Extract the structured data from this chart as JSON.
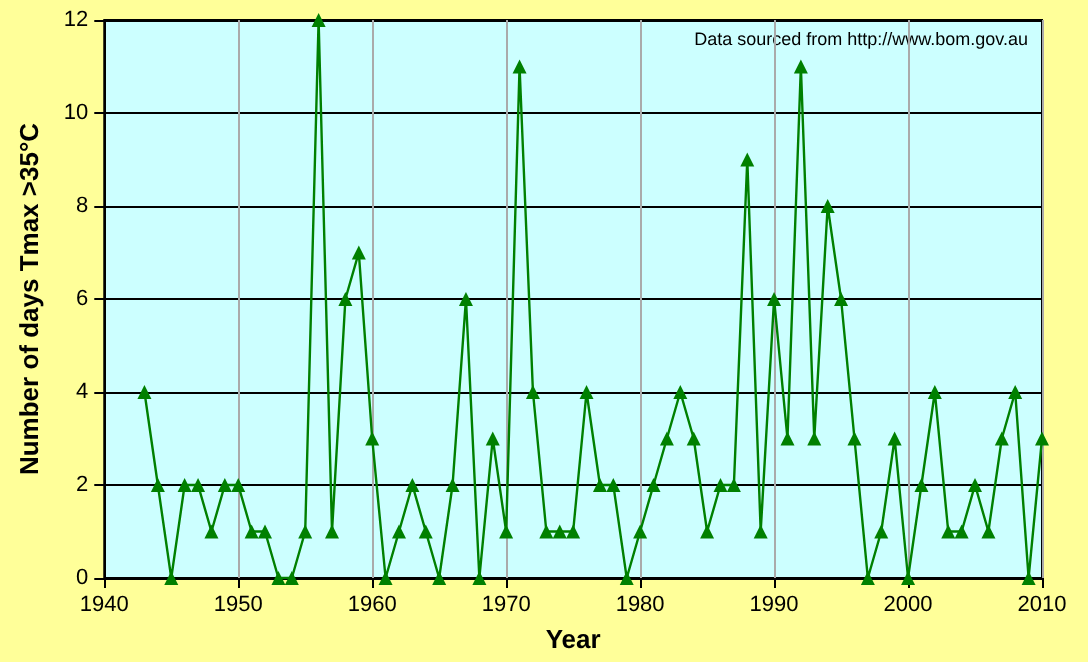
{
  "chart_data": {
    "type": "line",
    "xlabel": "Year",
    "ylabel": "Number of days Tmax >35°C",
    "annotations": [
      "Data sourced from http://www.bom.gov.au"
    ],
    "x": [
      1943,
      1944,
      1945,
      1946,
      1947,
      1948,
      1949,
      1950,
      1951,
      1952,
      1953,
      1954,
      1955,
      1956,
      1957,
      1958,
      1959,
      1960,
      1961,
      1962,
      1963,
      1964,
      1965,
      1966,
      1967,
      1968,
      1969,
      1970,
      1971,
      1972,
      1973,
      1974,
      1975,
      1976,
      1977,
      1978,
      1979,
      1980,
      1981,
      1982,
      1983,
      1984,
      1985,
      1986,
      1987,
      1988,
      1989,
      1990,
      1991,
      1992,
      1993,
      1994,
      1995,
      1996,
      1997,
      1998,
      1999,
      2000,
      2001,
      2002,
      2003,
      2004,
      2005,
      2006,
      2007,
      2008,
      2009,
      2010
    ],
    "series": [
      {
        "color": "#008000",
        "values": [
          4,
          2,
          0,
          2,
          2,
          1,
          2,
          2,
          1,
          1,
          0,
          0,
          1,
          12,
          1,
          6,
          7,
          3,
          0,
          1,
          2,
          1,
          0,
          2,
          6,
          0,
          3,
          1,
          11,
          4,
          1,
          1,
          1,
          4,
          2,
          2,
          0,
          1,
          2,
          3,
          4,
          3,
          1,
          2,
          2,
          9,
          1,
          6,
          3,
          11,
          3,
          8,
          6,
          3,
          0,
          1,
          3,
          0,
          2,
          4,
          1,
          1,
          2,
          1,
          3,
          4,
          0,
          3
        ]
      }
    ],
    "xlim": [
      1940,
      2010
    ],
    "xticks": [
      1940,
      1950,
      1960,
      1970,
      1980,
      1990,
      2000,
      2010
    ],
    "ylim": [
      0,
      12
    ],
    "yticks": [
      0,
      2,
      4,
      6,
      8,
      10,
      12
    ],
    "grid": true,
    "marker": "triangle",
    "line_style": "solid"
  }
}
